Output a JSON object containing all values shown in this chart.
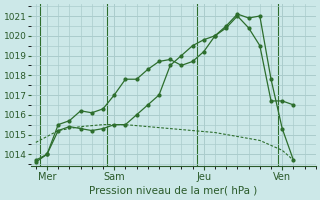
{
  "background_color": "#cce8e8",
  "grid_color": "#aacccc",
  "line_color": "#2d6e2d",
  "xlabel": "Pression niveau de la mer( hPa )",
  "ylim": [
    1013.4,
    1021.6
  ],
  "yticks": [
    1014,
    1015,
    1016,
    1017,
    1018,
    1019,
    1020,
    1021
  ],
  "xlim": [
    -0.2,
    12.5
  ],
  "day_labels": [
    "Mer",
    "Sam",
    "Jeu",
    "Ven"
  ],
  "day_positions": [
    0.5,
    3.5,
    7.5,
    11.0
  ],
  "vline_positions": [
    0.2,
    3.2,
    7.2,
    10.8
  ],
  "minor_x_step": 0.5,
  "series1_x": [
    0.0,
    0.5,
    1.0,
    1.5,
    2.0,
    2.5,
    3.0,
    3.5,
    4.0,
    4.5,
    5.0,
    5.5,
    6.0,
    6.5,
    7.0,
    7.5,
    8.0,
    8.5,
    9.0,
    9.5,
    10.0,
    10.5,
    11.0,
    11.5
  ],
  "series1_y": [
    1013.7,
    1014.0,
    1015.5,
    1015.7,
    1016.2,
    1016.1,
    1016.3,
    1017.0,
    1017.8,
    1017.8,
    1018.3,
    1018.7,
    1018.8,
    1018.5,
    1018.7,
    1019.2,
    1020.0,
    1020.4,
    1021.0,
    1020.4,
    1019.5,
    1016.7,
    1016.7,
    1016.5
  ],
  "series2_x": [
    0.0,
    0.5,
    1.0,
    1.5,
    2.0,
    2.5,
    3.0,
    3.5,
    4.0,
    4.5,
    5.0,
    5.5,
    6.0,
    6.5,
    7.0,
    7.5,
    8.0,
    8.5,
    9.0,
    9.5,
    10.0,
    10.5,
    11.0,
    11.5
  ],
  "series2_y": [
    1013.6,
    1014.0,
    1015.2,
    1015.4,
    1015.3,
    1015.2,
    1015.3,
    1015.5,
    1015.5,
    1016.0,
    1016.5,
    1017.0,
    1018.5,
    1019.0,
    1019.5,
    1019.8,
    1020.0,
    1020.5,
    1021.1,
    1020.9,
    1021.0,
    1017.8,
    1015.3,
    1013.7
  ],
  "series3_x": [
    0.0,
    1.0,
    2.0,
    3.0,
    4.0,
    5.0,
    6.0,
    7.0,
    8.0,
    9.0,
    10.0,
    11.0,
    11.5
  ],
  "series3_y": [
    1014.6,
    1015.2,
    1015.4,
    1015.5,
    1015.5,
    1015.4,
    1015.3,
    1015.2,
    1015.1,
    1014.9,
    1014.7,
    1014.2,
    1013.7
  ]
}
